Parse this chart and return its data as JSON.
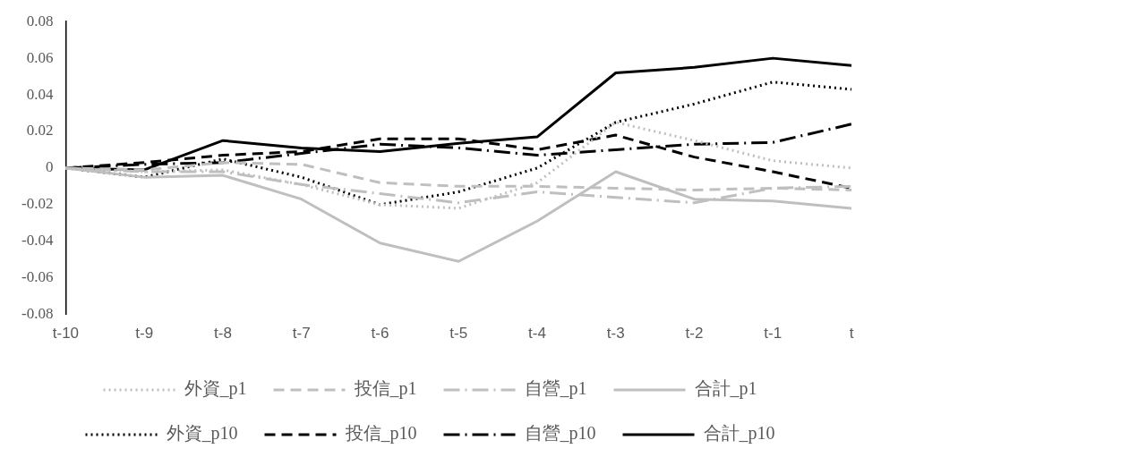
{
  "chart_data": {
    "type": "line",
    "categories": [
      "t-10",
      "t-9",
      "t-8",
      "t-7",
      "t-6",
      "t-5",
      "t-4",
      "t-3",
      "t-2",
      "t-1",
      "t"
    ],
    "ylim": [
      -0.08,
      0.08
    ],
    "yticks": [
      -0.08,
      -0.06,
      -0.04,
      -0.02,
      0,
      0.02,
      0.04,
      0.06,
      0.08
    ],
    "grid": false,
    "legend": "bottom",
    "marker": "none",
    "series": [
      {
        "name": "外資_p1",
        "color": "#bfbfbf",
        "line_style": "dotted",
        "values": [
          0,
          -0.002,
          -0.001,
          -0.009,
          -0.02,
          -0.022,
          -0.008,
          0.025,
          0.015,
          0.004,
          0
        ]
      },
      {
        "name": "投信_p1",
        "color": "#bfbfbf",
        "line_style": "dashed",
        "values": [
          0,
          -0.001,
          0.003,
          0.002,
          -0.008,
          -0.01,
          -0.01,
          -0.011,
          -0.012,
          -0.011,
          -0.012
        ]
      },
      {
        "name": "自營_p1",
        "color": "#bfbfbf",
        "line_style": "dashdot",
        "values": [
          0,
          -0.002,
          -0.002,
          -0.009,
          -0.014,
          -0.019,
          -0.013,
          -0.016,
          -0.019,
          -0.011,
          -0.01
        ]
      },
      {
        "name": "合計_p1",
        "color": "#bfbfbf",
        "line_style": "solid",
        "values": [
          0,
          -0.005,
          -0.004,
          -0.017,
          -0.041,
          -0.051,
          -0.029,
          -0.002,
          -0.017,
          -0.018,
          -0.022
        ]
      },
      {
        "name": "外資_p10",
        "color": "#000000",
        "line_style": "dotted",
        "values": [
          0,
          -0.005,
          0.005,
          -0.005,
          -0.02,
          -0.013,
          0,
          0.025,
          0.035,
          0.047,
          0.043
        ]
      },
      {
        "name": "投信_p10",
        "color": "#000000",
        "line_style": "dashed",
        "values": [
          0,
          0.003,
          0.007,
          0.009,
          0.016,
          0.016,
          0.01,
          0.018,
          0.006,
          -0.002,
          -0.011
        ]
      },
      {
        "name": "自營_p10",
        "color": "#000000",
        "line_style": "dashdot",
        "values": [
          0,
          0.002,
          0.003,
          0.008,
          0.013,
          0.011,
          0.007,
          0.01,
          0.013,
          0.014,
          0.024
        ]
      },
      {
        "name": "合計_p10",
        "color": "#000000",
        "line_style": "solid",
        "values": [
          0,
          -0.001,
          0.015,
          0.011,
          0.009,
          0.0135,
          0.017,
          0.052,
          0.055,
          0.06,
          0.056
        ]
      }
    ]
  }
}
